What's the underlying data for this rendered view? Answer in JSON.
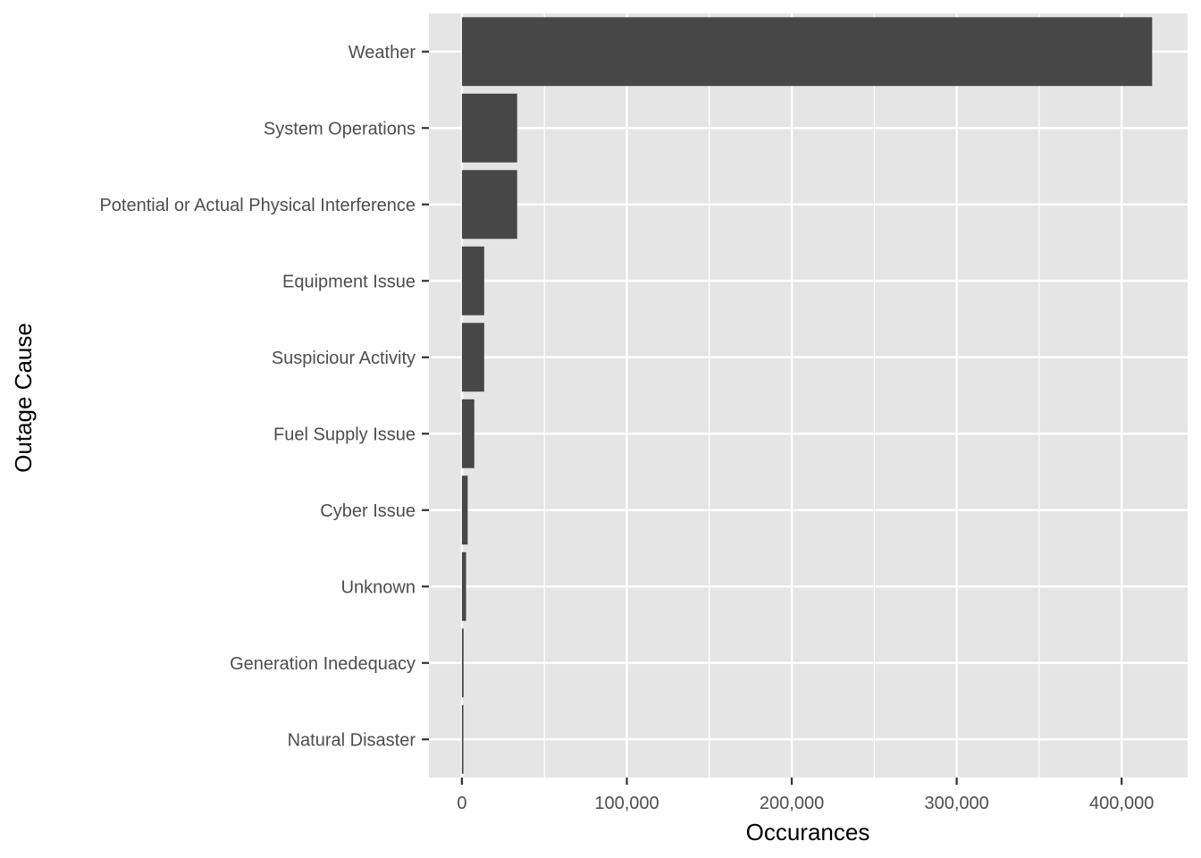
{
  "chart_data": {
    "type": "bar",
    "orientation": "horizontal",
    "categories": [
      "Weather",
      "System Operations",
      "Potential or Actual Physical Interference",
      "Equipment Issue",
      "Suspiciour Activity",
      "Fuel Supply Issue",
      "Cyber Issue",
      "Unknown",
      "Generation Inedequacy",
      "Natural Disaster"
    ],
    "values": [
      418500,
      33500,
      33500,
      13500,
      13500,
      7500,
      3500,
      2500,
      1000,
      900
    ],
    "xlabel": "Occurances",
    "ylabel": "Outage Cause",
    "xlim": [
      -20000,
      440000
    ],
    "x_ticks": [
      0,
      100000,
      200000,
      300000,
      400000
    ],
    "x_tick_labels": [
      "0",
      "100,000",
      "200,000",
      "300,000",
      "400,000"
    ],
    "grid": true,
    "colors": {
      "bar": "#474747",
      "panel": "#e5e5e5",
      "grid_major": "#ffffff",
      "tick_text": "#4d4d4d"
    }
  }
}
